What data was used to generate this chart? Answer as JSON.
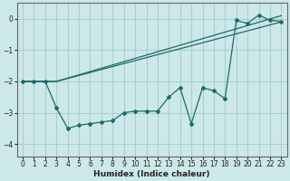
{
  "xlabel": "Humidex (Indice chaleur)",
  "background_color": "#cce8e8",
  "grid_color": "#aacfcf",
  "line_color": "#1a6b6b",
  "xlim": [
    -0.5,
    23.5
  ],
  "ylim": [
    -4.4,
    0.5
  ],
  "yticks": [
    0,
    -1,
    -2,
    -3,
    -4
  ],
  "xticks": [
    0,
    1,
    2,
    3,
    4,
    5,
    6,
    7,
    8,
    9,
    10,
    11,
    12,
    13,
    14,
    15,
    16,
    17,
    18,
    19,
    20,
    21,
    22,
    23
  ],
  "line1_x": [
    0,
    1,
    2,
    3,
    4,
    5,
    6,
    7,
    8,
    9,
    10,
    11,
    12,
    13,
    14,
    15,
    16,
    17,
    18,
    19,
    20,
    21,
    22,
    23
  ],
  "line1_y": [
    -2.0,
    -2.0,
    -2.0,
    -2.85,
    -3.5,
    -3.4,
    -3.35,
    -3.3,
    -3.25,
    -3.0,
    -2.95,
    -2.95,
    -2.95,
    -2.5,
    -2.2,
    -3.35,
    -2.2,
    -2.3,
    -2.55,
    -0.05,
    -0.15,
    0.12,
    -0.05,
    -0.08
  ],
  "line2_x": [
    0,
    3,
    23
  ],
  "line2_y": [
    -2.0,
    -2.0,
    0.1
  ],
  "line3_x": [
    0,
    3,
    23
  ],
  "line3_y": [
    -2.0,
    -2.0,
    -0.1
  ]
}
